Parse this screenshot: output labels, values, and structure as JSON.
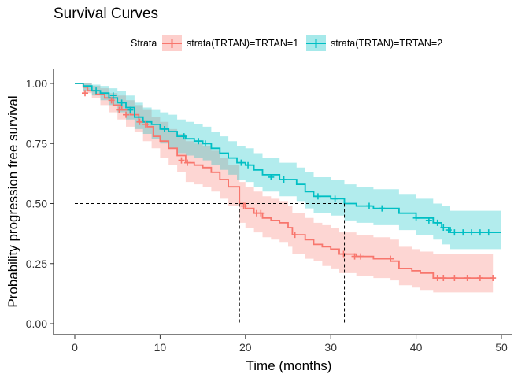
{
  "chart_data": {
    "type": "line",
    "title": "Survival Curves",
    "xlabel": "Time (months)",
    "ylabel": "Probability progression free survival",
    "xlim": [
      0,
      50
    ],
    "ylim": [
      0,
      1
    ],
    "xticks": [
      0,
      10,
      20,
      30,
      40,
      50
    ],
    "yticks": [
      0.0,
      0.25,
      0.5,
      0.75,
      1.0
    ],
    "ytick_labels": [
      "0.00",
      "0.25",
      "0.50",
      "0.75",
      "1.00"
    ],
    "grid": false,
    "legend": {
      "title": "Strata",
      "position": "top"
    },
    "median_line": {
      "y": 0.5,
      "x_values": [
        19.3,
        31.6
      ]
    },
    "series": [
      {
        "name": "strata(TRTAN)=TRTAN=1",
        "color": "#F8766D",
        "fill": "#F8766D",
        "step": [
          [
            0,
            1.0
          ],
          [
            1.0,
            0.985
          ],
          [
            1.5,
            0.97
          ],
          [
            2.5,
            0.955
          ],
          [
            3.5,
            0.94
          ],
          [
            4.5,
            0.91
          ],
          [
            5.5,
            0.89
          ],
          [
            6.5,
            0.87
          ],
          [
            7.5,
            0.84
          ],
          [
            8.5,
            0.82
          ],
          [
            9.2,
            0.78
          ],
          [
            10.0,
            0.76
          ],
          [
            11.0,
            0.73
          ],
          [
            12.0,
            0.7
          ],
          [
            13.0,
            0.67
          ],
          [
            14.0,
            0.66
          ],
          [
            15.0,
            0.65
          ],
          [
            16.0,
            0.63
          ],
          [
            17.0,
            0.6
          ],
          [
            18.0,
            0.57
          ],
          [
            19.3,
            0.5
          ],
          [
            20.0,
            0.48
          ],
          [
            21.0,
            0.46
          ],
          [
            22.0,
            0.44
          ],
          [
            23.0,
            0.43
          ],
          [
            24.0,
            0.42
          ],
          [
            25.0,
            0.4
          ],
          [
            25.5,
            0.37
          ],
          [
            27.0,
            0.35
          ],
          [
            28.0,
            0.33
          ],
          [
            29.0,
            0.32
          ],
          [
            30.0,
            0.31
          ],
          [
            31.0,
            0.29
          ],
          [
            33.0,
            0.28
          ],
          [
            35.0,
            0.27
          ],
          [
            37.0,
            0.26
          ],
          [
            38.0,
            0.23
          ],
          [
            39.5,
            0.22
          ],
          [
            40.5,
            0.21
          ],
          [
            42.0,
            0.19
          ],
          [
            49.0,
            0.19
          ]
        ],
        "upper": [
          [
            0,
            1.0
          ],
          [
            1.0,
            1.0
          ],
          [
            2.0,
            0.99
          ],
          [
            3.0,
            0.98
          ],
          [
            4.0,
            0.96
          ],
          [
            5.0,
            0.95
          ],
          [
            6.0,
            0.93
          ],
          [
            7.0,
            0.91
          ],
          [
            8.0,
            0.89
          ],
          [
            9.0,
            0.86
          ],
          [
            10.0,
            0.84
          ],
          [
            11.0,
            0.81
          ],
          [
            12.0,
            0.79
          ],
          [
            13.0,
            0.76
          ],
          [
            14.0,
            0.75
          ],
          [
            15.0,
            0.74
          ],
          [
            16.0,
            0.72
          ],
          [
            17.0,
            0.69
          ],
          [
            18.0,
            0.66
          ],
          [
            19.3,
            0.59
          ],
          [
            20.0,
            0.57
          ],
          [
            21.0,
            0.55
          ],
          [
            22.0,
            0.53
          ],
          [
            23.0,
            0.52
          ],
          [
            24.0,
            0.51
          ],
          [
            25.0,
            0.49
          ],
          [
            25.5,
            0.46
          ],
          [
            27.0,
            0.44
          ],
          [
            28.0,
            0.42
          ],
          [
            29.0,
            0.41
          ],
          [
            30.0,
            0.4
          ],
          [
            31.0,
            0.38
          ],
          [
            33.0,
            0.37
          ],
          [
            35.0,
            0.36
          ],
          [
            37.0,
            0.35
          ],
          [
            38.0,
            0.32
          ],
          [
            39.5,
            0.31
          ],
          [
            40.5,
            0.3
          ],
          [
            42.0,
            0.29
          ],
          [
            49.0,
            0.29
          ]
        ],
        "lower": [
          [
            0,
            1.0
          ],
          [
            1.0,
            0.96
          ],
          [
            2.0,
            0.94
          ],
          [
            3.0,
            0.91
          ],
          [
            4.0,
            0.88
          ],
          [
            5.0,
            0.85
          ],
          [
            6.0,
            0.82
          ],
          [
            7.0,
            0.8
          ],
          [
            8.0,
            0.76
          ],
          [
            9.0,
            0.73
          ],
          [
            10.0,
            0.69
          ],
          [
            11.0,
            0.66
          ],
          [
            12.0,
            0.63
          ],
          [
            13.0,
            0.59
          ],
          [
            14.0,
            0.58
          ],
          [
            15.0,
            0.57
          ],
          [
            16.0,
            0.55
          ],
          [
            17.0,
            0.52
          ],
          [
            18.0,
            0.49
          ],
          [
            19.3,
            0.42
          ],
          [
            20.0,
            0.4
          ],
          [
            21.0,
            0.38
          ],
          [
            22.0,
            0.36
          ],
          [
            23.0,
            0.35
          ],
          [
            24.0,
            0.34
          ],
          [
            25.0,
            0.32
          ],
          [
            25.5,
            0.29
          ],
          [
            27.0,
            0.27
          ],
          [
            28.0,
            0.26
          ],
          [
            29.0,
            0.24
          ],
          [
            30.0,
            0.23
          ],
          [
            31.0,
            0.21
          ],
          [
            33.0,
            0.2
          ],
          [
            35.0,
            0.19
          ],
          [
            37.0,
            0.18
          ],
          [
            38.0,
            0.16
          ],
          [
            39.5,
            0.15
          ],
          [
            40.5,
            0.14
          ],
          [
            42.0,
            0.13
          ],
          [
            49.0,
            0.13
          ]
        ],
        "censors": [
          [
            1.2,
            0.96
          ],
          [
            4.3,
            0.93
          ],
          [
            5.2,
            0.89
          ],
          [
            6.0,
            0.87
          ],
          [
            7.6,
            0.84
          ],
          [
            8.3,
            0.83
          ],
          [
            12.5,
            0.68
          ],
          [
            13.2,
            0.67
          ],
          [
            19.8,
            0.49
          ],
          [
            21.3,
            0.46
          ],
          [
            21.8,
            0.46
          ],
          [
            25.8,
            0.37
          ],
          [
            31.5,
            0.29
          ],
          [
            32.8,
            0.28
          ],
          [
            33.5,
            0.28
          ],
          [
            37.0,
            0.27
          ],
          [
            42.5,
            0.19
          ],
          [
            43.2,
            0.19
          ],
          [
            44.5,
            0.19
          ],
          [
            46.0,
            0.19
          ],
          [
            47.5,
            0.19
          ],
          [
            49.0,
            0.19
          ]
        ]
      },
      {
        "name": "strata(TRTAN)=TRTAN=2",
        "color": "#00BFC4",
        "fill": "#00BFC4",
        "step": [
          [
            0,
            1.0
          ],
          [
            1.0,
            0.99
          ],
          [
            2.0,
            0.97
          ],
          [
            3.0,
            0.96
          ],
          [
            4.0,
            0.94
          ],
          [
            5.0,
            0.92
          ],
          [
            6.0,
            0.9
          ],
          [
            7.0,
            0.86
          ],
          [
            8.0,
            0.84
          ],
          [
            9.0,
            0.83
          ],
          [
            10.0,
            0.81
          ],
          [
            11.0,
            0.8
          ],
          [
            12.0,
            0.78
          ],
          [
            13.0,
            0.77
          ],
          [
            14.0,
            0.76
          ],
          [
            15.0,
            0.75
          ],
          [
            16.0,
            0.73
          ],
          [
            17.0,
            0.71
          ],
          [
            18.0,
            0.69
          ],
          [
            19.0,
            0.67
          ],
          [
            20.0,
            0.66
          ],
          [
            21.0,
            0.64
          ],
          [
            22.0,
            0.62
          ],
          [
            24.0,
            0.6
          ],
          [
            26.0,
            0.58
          ],
          [
            27.0,
            0.55
          ],
          [
            28.0,
            0.53
          ],
          [
            30.0,
            0.52
          ],
          [
            31.6,
            0.5
          ],
          [
            33.0,
            0.49
          ],
          [
            35.0,
            0.48
          ],
          [
            38.0,
            0.46
          ],
          [
            40.0,
            0.44
          ],
          [
            42.0,
            0.42
          ],
          [
            43.0,
            0.4
          ],
          [
            44.0,
            0.38
          ],
          [
            50.0,
            0.38
          ]
        ],
        "upper": [
          [
            0,
            1.0
          ],
          [
            1.0,
            1.0
          ],
          [
            2.0,
            0.995
          ],
          [
            3.0,
            0.99
          ],
          [
            4.0,
            0.98
          ],
          [
            5.0,
            0.97
          ],
          [
            6.0,
            0.95
          ],
          [
            7.0,
            0.92
          ],
          [
            8.0,
            0.9
          ],
          [
            9.0,
            0.89
          ],
          [
            10.0,
            0.88
          ],
          [
            11.0,
            0.87
          ],
          [
            12.0,
            0.85
          ],
          [
            13.0,
            0.84
          ],
          [
            14.0,
            0.83
          ],
          [
            15.0,
            0.82
          ],
          [
            16.0,
            0.8
          ],
          [
            17.0,
            0.78
          ],
          [
            18.0,
            0.76
          ],
          [
            19.0,
            0.74
          ],
          [
            20.0,
            0.73
          ],
          [
            21.0,
            0.71
          ],
          [
            22.0,
            0.69
          ],
          [
            24.0,
            0.67
          ],
          [
            26.0,
            0.65
          ],
          [
            27.0,
            0.63
          ],
          [
            28.0,
            0.61
          ],
          [
            30.0,
            0.6
          ],
          [
            31.6,
            0.58
          ],
          [
            33.0,
            0.57
          ],
          [
            35.0,
            0.56
          ],
          [
            38.0,
            0.54
          ],
          [
            40.0,
            0.52
          ],
          [
            42.0,
            0.5
          ],
          [
            43.0,
            0.49
          ],
          [
            44.0,
            0.47
          ],
          [
            50.0,
            0.47
          ]
        ],
        "lower": [
          [
            0,
            1.0
          ],
          [
            1.0,
            0.97
          ],
          [
            2.0,
            0.95
          ],
          [
            3.0,
            0.93
          ],
          [
            4.0,
            0.91
          ],
          [
            5.0,
            0.88
          ],
          [
            6.0,
            0.85
          ],
          [
            7.0,
            0.81
          ],
          [
            8.0,
            0.79
          ],
          [
            9.0,
            0.77
          ],
          [
            10.0,
            0.75
          ],
          [
            11.0,
            0.73
          ],
          [
            12.0,
            0.71
          ],
          [
            13.0,
            0.7
          ],
          [
            14.0,
            0.69
          ],
          [
            15.0,
            0.68
          ],
          [
            16.0,
            0.66
          ],
          [
            17.0,
            0.64
          ],
          [
            18.0,
            0.62
          ],
          [
            19.0,
            0.6
          ],
          [
            20.0,
            0.59
          ],
          [
            21.0,
            0.57
          ],
          [
            22.0,
            0.55
          ],
          [
            24.0,
            0.53
          ],
          [
            26.0,
            0.51
          ],
          [
            27.0,
            0.48
          ],
          [
            28.0,
            0.46
          ],
          [
            30.0,
            0.45
          ],
          [
            31.6,
            0.43
          ],
          [
            33.0,
            0.42
          ],
          [
            35.0,
            0.41
          ],
          [
            38.0,
            0.39
          ],
          [
            40.0,
            0.37
          ],
          [
            42.0,
            0.35
          ],
          [
            43.0,
            0.33
          ],
          [
            44.0,
            0.31
          ],
          [
            50.0,
            0.31
          ]
        ],
        "censors": [
          [
            2.5,
            0.97
          ],
          [
            4.5,
            0.95
          ],
          [
            5.5,
            0.92
          ],
          [
            6.5,
            0.89
          ],
          [
            10.5,
            0.81
          ],
          [
            12.8,
            0.78
          ],
          [
            14.5,
            0.76
          ],
          [
            15.3,
            0.75
          ],
          [
            19.5,
            0.67
          ],
          [
            20.3,
            0.66
          ],
          [
            23.0,
            0.61
          ],
          [
            24.5,
            0.6
          ],
          [
            28.5,
            0.53
          ],
          [
            30.5,
            0.52
          ],
          [
            34.5,
            0.49
          ],
          [
            36.0,
            0.48
          ],
          [
            40.0,
            0.44
          ],
          [
            41.5,
            0.43
          ],
          [
            42.5,
            0.42
          ],
          [
            43.2,
            0.4
          ],
          [
            43.8,
            0.39
          ],
          [
            44.5,
            0.38
          ],
          [
            45.5,
            0.38
          ],
          [
            46.5,
            0.38
          ],
          [
            47.5,
            0.38
          ],
          [
            48.5,
            0.38
          ]
        ]
      }
    ]
  }
}
